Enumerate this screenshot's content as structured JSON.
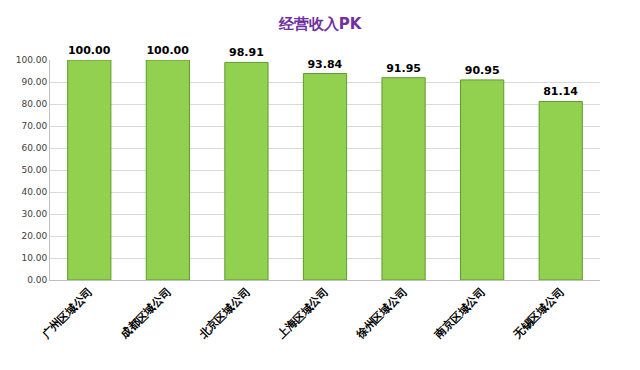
{
  "chart_data": {
    "type": "bar",
    "title": "经营收入PK",
    "categories": [
      "广州区域公司",
      "成都区域公司",
      "北京区域公司",
      "上海区域公司",
      "徐州区域公司",
      "南京区域公司",
      "无锡区域公司"
    ],
    "values": [
      100,
      100,
      98.91,
      93.84,
      91.95,
      90.95,
      81.14
    ],
    "value_labels": [
      "100.00",
      "100.00",
      "98.91",
      "93.84",
      "91.95",
      "90.95",
      "81.14"
    ],
    "data_labels": true,
    "color": "#92d050",
    "ylim": [
      0,
      100
    ],
    "yticks": [
      {
        "value": 0,
        "label": "0.00"
      },
      {
        "value": 10,
        "label": "10.00"
      },
      {
        "value": 20,
        "label": "20.00"
      },
      {
        "value": 30,
        "label": "30.00"
      },
      {
        "value": 40,
        "label": "40.00"
      },
      {
        "value": 50,
        "label": "50.00"
      },
      {
        "value": 60,
        "label": "60.00"
      },
      {
        "value": 70,
        "label": "70.00"
      },
      {
        "value": 80,
        "label": "80.00"
      },
      {
        "value": 90,
        "label": "90.00"
      },
      {
        "value": 100,
        "label": "100.00"
      }
    ],
    "grid": true
  }
}
